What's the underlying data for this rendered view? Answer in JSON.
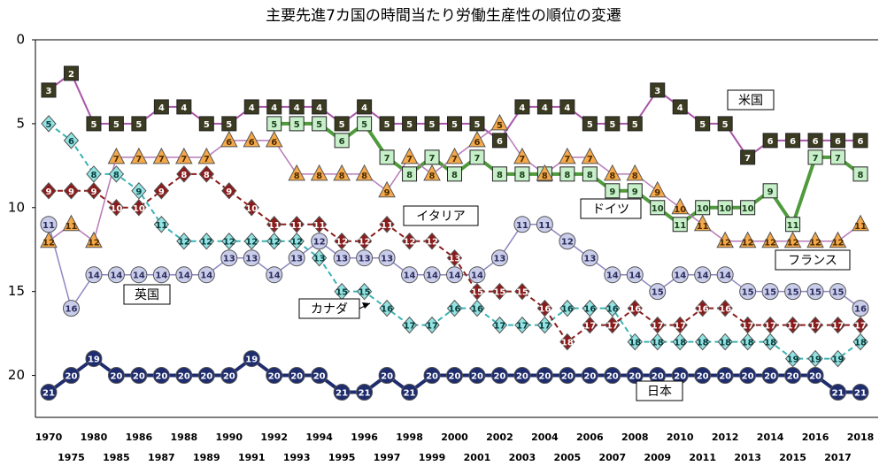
{
  "chart_data": {
    "type": "line",
    "title": "主要先進7カ国の時間当たり労働生産性の順位の変遷",
    "categories": [
      "1970",
      "1975",
      "1980",
      "1985",
      "1986",
      "1987",
      "1988",
      "1989",
      "1990",
      "1991",
      "1992",
      "1993",
      "1994",
      "1995",
      "1996",
      "1997",
      "1998",
      "1999",
      "2000",
      "2001",
      "2002",
      "2003",
      "2004",
      "2005",
      "2006",
      "2007",
      "2008",
      "2009",
      "2010",
      "2011",
      "2012",
      "2013",
      "2014",
      "2015",
      "2016",
      "2017",
      "2018"
    ],
    "ylim": [
      0,
      22.5
    ],
    "yticks": [
      0,
      5,
      10,
      15,
      20
    ],
    "y_reversed": true,
    "grid": false,
    "series": [
      {
        "name": "日本",
        "color": "#1f2d6e",
        "marker": "circle",
        "marker_fill": "#1f2d6e",
        "text_color": "#ffffff",
        "line_width": 4,
        "dashed": false,
        "values": [
          21,
          20,
          19,
          20,
          20,
          20,
          20,
          20,
          20,
          19,
          20,
          20,
          20,
          21,
          21,
          20,
          21,
          20,
          20,
          20,
          20,
          20,
          20,
          20,
          20,
          20,
          20,
          20,
          20,
          20,
          20,
          20,
          20,
          20,
          20,
          21,
          21
        ]
      },
      {
        "name": "米国",
        "color": "#a855a8",
        "marker": "square",
        "marker_fill": "#3b3b22",
        "text_color": "#ffffff",
        "line_width": 2,
        "dashed": false,
        "values": [
          3,
          2,
          5,
          5,
          5,
          4,
          4,
          5,
          5,
          4,
          4,
          4,
          4,
          5,
          4,
          5,
          5,
          5,
          5,
          5,
          6,
          4,
          4,
          4,
          5,
          5,
          5,
          3,
          4,
          5,
          5,
          7,
          6,
          6,
          6,
          6,
          6
        ]
      },
      {
        "name": "ドイツ",
        "color": "#4f9a3c",
        "marker": "square",
        "marker_fill": "#c7efc9",
        "text_color": "#1a3d1a",
        "line_width": 4,
        "dashed": false,
        "values": [
          null,
          null,
          null,
          null,
          null,
          null,
          null,
          null,
          null,
          null,
          5,
          5,
          5,
          6,
          5,
          7,
          8,
          7,
          8,
          7,
          8,
          8,
          8,
          8,
          8,
          9,
          9,
          10,
          11,
          10,
          10,
          10,
          9,
          11,
          7,
          7,
          8
        ]
      },
      {
        "name": "フランス",
        "color": "#b77bb7",
        "marker": "triangle",
        "marker_fill": "#f5a94a",
        "text_color": "#4a2a00",
        "line_width": 1.5,
        "dashed": false,
        "values": [
          12,
          11,
          12,
          7,
          7,
          7,
          7,
          7,
          6,
          6,
          6,
          8,
          8,
          8,
          8,
          9,
          7,
          8,
          7,
          6,
          5,
          7,
          8,
          7,
          7,
          8,
          8,
          9,
          10,
          11,
          12,
          12,
          12,
          12,
          12,
          12,
          11
        ]
      },
      {
        "name": "英国",
        "color": "#8e86c2",
        "marker": "circle",
        "marker_fill": "#c9cdea",
        "text_color": "#2a2a5a",
        "line_width": 1.5,
        "dashed": false,
        "values": [
          11,
          16,
          14,
          14,
          14,
          14,
          14,
          14,
          13,
          13,
          14,
          13,
          12,
          13,
          13,
          13,
          14,
          14,
          14,
          14,
          13,
          11,
          11,
          12,
          13,
          14,
          14,
          15,
          14,
          14,
          14,
          15,
          15,
          15,
          15,
          15,
          16
        ]
      },
      {
        "name": "カナダ",
        "color": "#39b3b3",
        "marker": "diamond",
        "marker_fill": "#93e3e3",
        "text_color": "#0a3a3a",
        "line_width": 2,
        "dashed": true,
        "values": [
          5,
          6,
          8,
          8,
          9,
          11,
          12,
          12,
          12,
          12,
          12,
          12,
          13,
          15,
          15,
          16,
          17,
          17,
          16,
          16,
          17,
          17,
          17,
          16,
          16,
          16,
          18,
          18,
          18,
          18,
          18,
          18,
          18,
          19,
          19,
          19,
          18
        ]
      },
      {
        "name": "イタリア",
        "color": "#8b1c1c",
        "marker": "diamond",
        "marker_fill": "#8b1c1c",
        "text_color": "#ffffff",
        "line_width": 2,
        "dashed": true,
        "values": [
          9,
          9,
          9,
          10,
          10,
          9,
          8,
          8,
          9,
          10,
          11,
          11,
          11,
          12,
          12,
          11,
          12,
          12,
          13,
          15,
          15,
          15,
          16,
          18,
          17,
          17,
          16,
          17,
          17,
          16,
          16,
          17,
          17,
          17,
          17,
          17,
          17
        ]
      }
    ]
  }
}
